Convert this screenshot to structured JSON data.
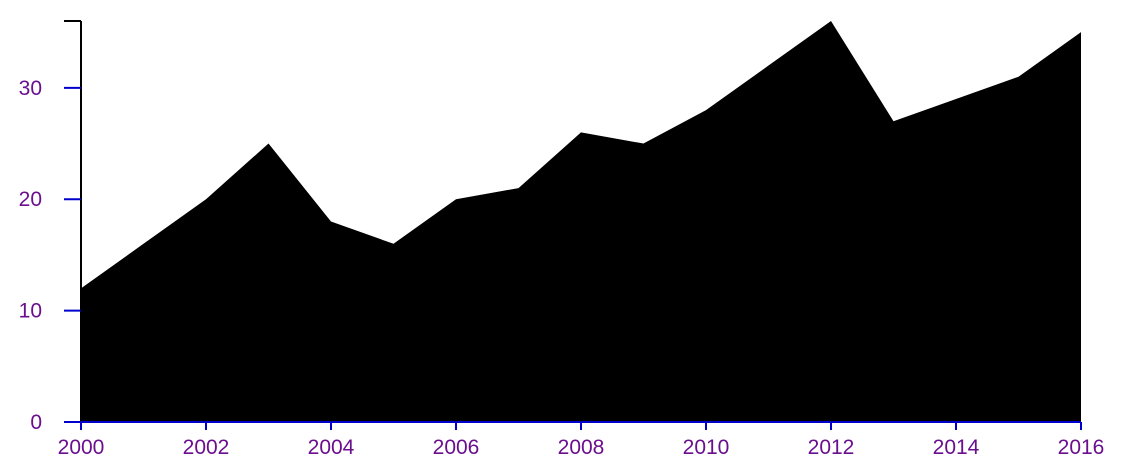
{
  "chart_data": {
    "type": "area",
    "title": "",
    "xlabel": "",
    "ylabel": "",
    "x": [
      2000,
      2001,
      2002,
      2003,
      2004,
      2005,
      2006,
      2007,
      2008,
      2009,
      2010,
      2011,
      2012,
      2013,
      2014,
      2015,
      2016
    ],
    "values": [
      12,
      16,
      20,
      25,
      18,
      16,
      20,
      21,
      26,
      25,
      28,
      32,
      36,
      27,
      29,
      31,
      35
    ],
    "xlim": [
      2000,
      2016
    ],
    "ylim": [
      0,
      36
    ],
    "x_ticks": [
      "2000",
      "2002",
      "2004",
      "2006",
      "2008",
      "2010",
      "2012",
      "2014",
      "2016"
    ],
    "y_ticks": [
      "0",
      "10",
      "20",
      "30"
    ],
    "grid": false,
    "colors": {
      "fill": "#000000",
      "x_axis_line": "#0000cc",
      "y_axis_line": "#000000",
      "tick_mark": "#0000cc",
      "tick_label": "#6a0f8e"
    }
  }
}
